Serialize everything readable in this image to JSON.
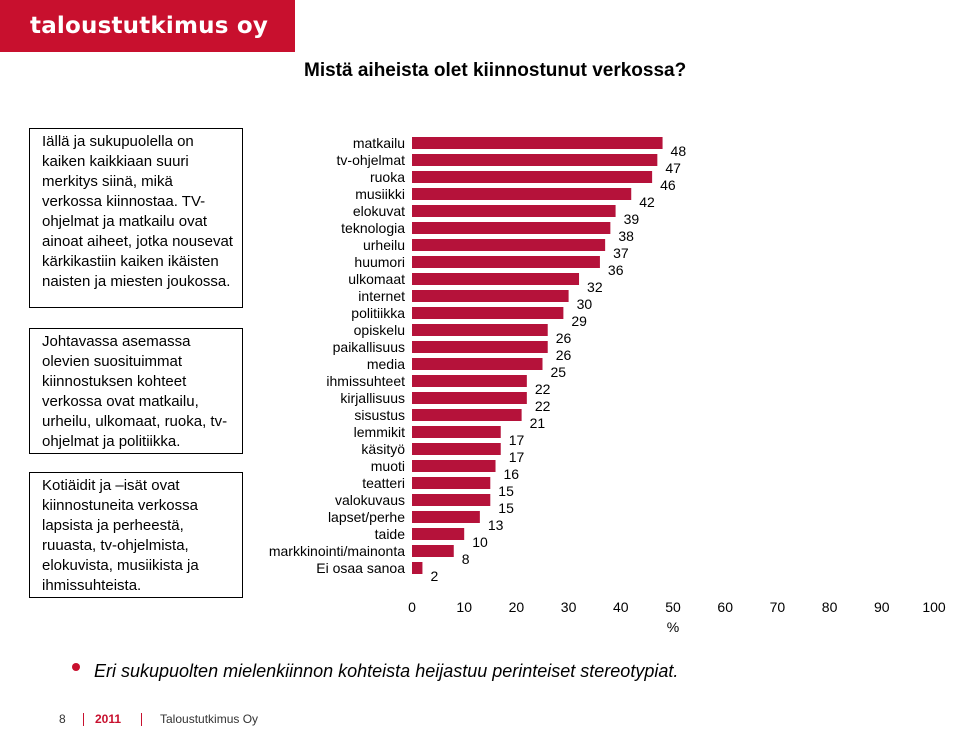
{
  "header": {
    "logo_text": "taloustutkimus oy",
    "title": "Mistä aiheista olet kiinnostunut verkossa?"
  },
  "notes": [
    "Iällä ja sukupuolella on kaiken kaikkiaan suuri merkitys siinä, mikä verkossa kiinnostaa. TV-ohjelmat ja matkailu ovat ainoat aiheet, jotka nousevat kärkikastiin kaiken ikäisten naisten ja miesten joukossa.",
    "Johtavassa asemassa olevien suosituimmat kiinnostuksen kohteet verkossa ovat matkailu, urheilu, ulkomaat, ruoka, tv-ohjelmat ja politiikka.",
    "Kotiäidit ja –isät ovat kiinnostuneita verkossa lapsista ja perheestä, ruuasta, tv-ohjelmista, elokuvista, musiikista ja ihmissuhteista."
  ],
  "chart_data": {
    "type": "bar",
    "orientation": "horizontal",
    "categories": [
      "matkailu",
      "tv-ohjelmat",
      "ruoka",
      "musiikki",
      "elokuvat",
      "teknologia",
      "urheilu",
      "huumori",
      "ulkomaat",
      "internet",
      "politiikka",
      "opiskelu",
      "paikallisuus",
      "media",
      "ihmissuhteet",
      "kirjallisuus",
      "sisustus",
      "lemmikit",
      "käsityö",
      "muoti",
      "teatteri",
      "valokuvaus",
      "lapset/perhe",
      "taide",
      "markkinointi/mainonta",
      "Ei osaa sanoa"
    ],
    "values": [
      48,
      47,
      46,
      42,
      39,
      38,
      37,
      36,
      32,
      30,
      29,
      26,
      26,
      25,
      22,
      22,
      21,
      17,
      17,
      16,
      15,
      15,
      13,
      10,
      8,
      2
    ],
    "xlim": [
      0,
      100
    ],
    "xticks": [
      "0",
      "10",
      "20",
      "30",
      "40",
      "50",
      "60",
      "70",
      "80",
      "90",
      "100"
    ],
    "xlabel": "%",
    "bar_color": "#b5123a",
    "grid": false
  },
  "summary": {
    "text": "Eri sukupuolten mielenkiinnon kohteista heijastuu perinteiset stereotypiat."
  },
  "footer": {
    "page": "8",
    "year": "2011",
    "company": "Taloustutkimus Oy"
  }
}
